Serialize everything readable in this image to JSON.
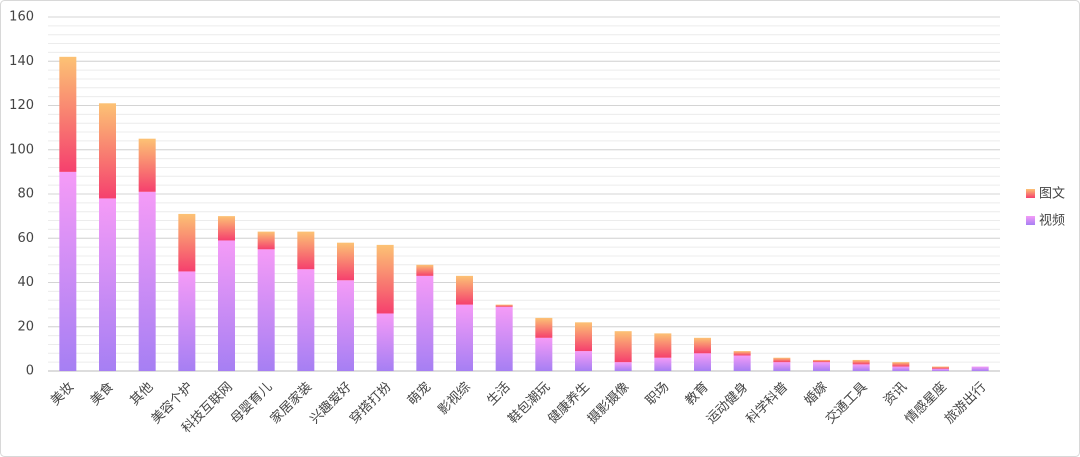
{
  "chart_data": {
    "type": "stacked_bar",
    "categories": [
      "美妆",
      "美食",
      "其他",
      "美容个护",
      "科技互联网",
      "母婴育儿",
      "家居家装",
      "兴趣爱好",
      "穿搭打扮",
      "萌宠",
      "影视综",
      "生活",
      "鞋包潮玩",
      "健康养生",
      "摄影摄像",
      "职场",
      "教育",
      "运动健身",
      "科学科普",
      "婚嫁",
      "交通工具",
      "资讯",
      "情感星座",
      "旅游出行"
    ],
    "series": [
      {
        "name": "视频",
        "color": [
          "#a67ff3",
          "#f59bf7"
        ],
        "values": [
          90,
          78,
          81,
          45,
          59,
          55,
          46,
          41,
          26,
          43,
          30,
          29,
          15,
          9,
          4,
          6,
          8,
          7,
          4,
          4,
          3,
          2,
          1,
          2
        ]
      },
      {
        "name": "图文",
        "color": [
          "#f5406e",
          "#fcc274"
        ],
        "values": [
          52,
          43,
          24,
          26,
          11,
          8,
          17,
          17,
          31,
          5,
          13,
          1,
          9,
          13,
          14,
          11,
          7,
          2,
          2,
          1,
          2,
          2,
          1,
          0
        ]
      }
    ],
    "ylim": [
      0,
      160
    ],
    "yticks": [
      0,
      20,
      40,
      60,
      80,
      100,
      120,
      140,
      160
    ],
    "grid": true,
    "minor_grid_step": 4,
    "legend": "right"
  }
}
